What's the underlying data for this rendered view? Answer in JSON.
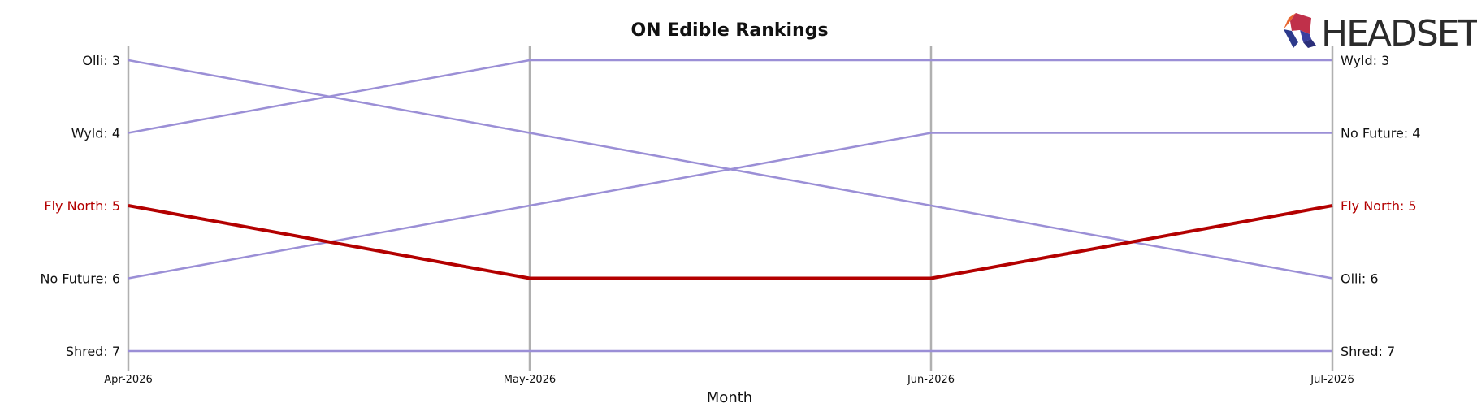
{
  "brand": {
    "logo_text": "HEADSET"
  },
  "colors": {
    "highlight": "#b30000",
    "series": "#9b8fd6",
    "grid": "#b0b0b0"
  },
  "chart_data": {
    "type": "line",
    "title": "ON Edible Rankings",
    "xlabel": "Month",
    "ylabel": "",
    "categories": [
      "Apr-2026",
      "May-2026",
      "Jun-2026",
      "Jul-2026"
    ],
    "ylim": [
      7,
      3
    ],
    "y_inverted": true,
    "grid": "vertical",
    "highlight_series": "Fly North",
    "series": [
      {
        "name": "Olli",
        "values": [
          3,
          4,
          5,
          6
        ],
        "left_label": "Olli: 3",
        "right_label": "Olli: 6"
      },
      {
        "name": "Wyld",
        "values": [
          4,
          3,
          3,
          3
        ],
        "left_label": "Wyld: 4",
        "right_label": "Wyld: 3"
      },
      {
        "name": "Fly North",
        "values": [
          5,
          6,
          6,
          5
        ],
        "left_label": "Fly North: 5",
        "right_label": "Fly North: 5"
      },
      {
        "name": "No Future",
        "values": [
          6,
          5,
          4,
          4
        ],
        "left_label": "No Future: 6",
        "right_label": "No Future: 4"
      },
      {
        "name": "Shred",
        "values": [
          7,
          7,
          7,
          7
        ],
        "left_label": "Shred: 7",
        "right_label": "Shred: 7"
      }
    ]
  }
}
